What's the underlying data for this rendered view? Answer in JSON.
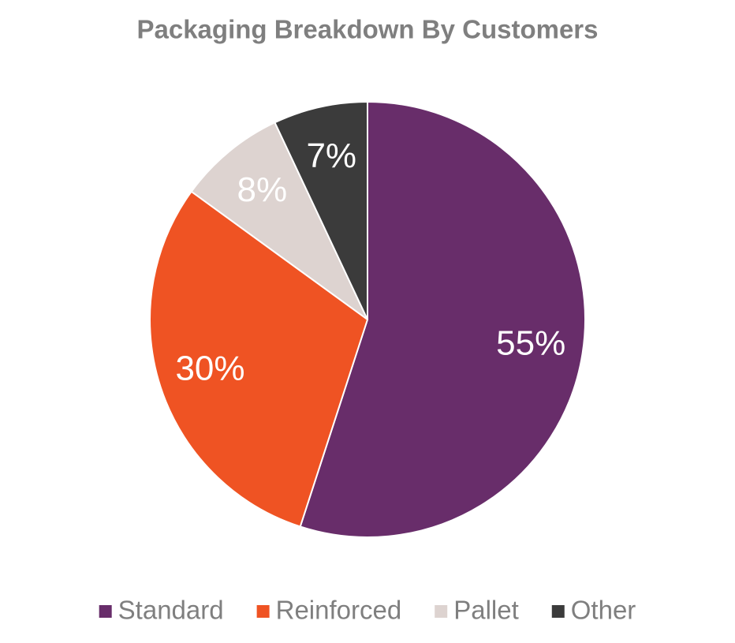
{
  "chart_data": {
    "type": "pie",
    "title": "Packaging Breakdown By Customers",
    "categories": [
      "Standard",
      "Reinforced",
      "Pallet",
      "Other"
    ],
    "values": [
      55,
      30,
      8,
      7
    ],
    "value_labels": [
      "55%",
      "30%",
      "8%",
      "7%"
    ],
    "colors": [
      "#682d6a",
      "#ef5323",
      "#ddd3d0",
      "#3b3b3b"
    ],
    "legend": "bottom"
  }
}
